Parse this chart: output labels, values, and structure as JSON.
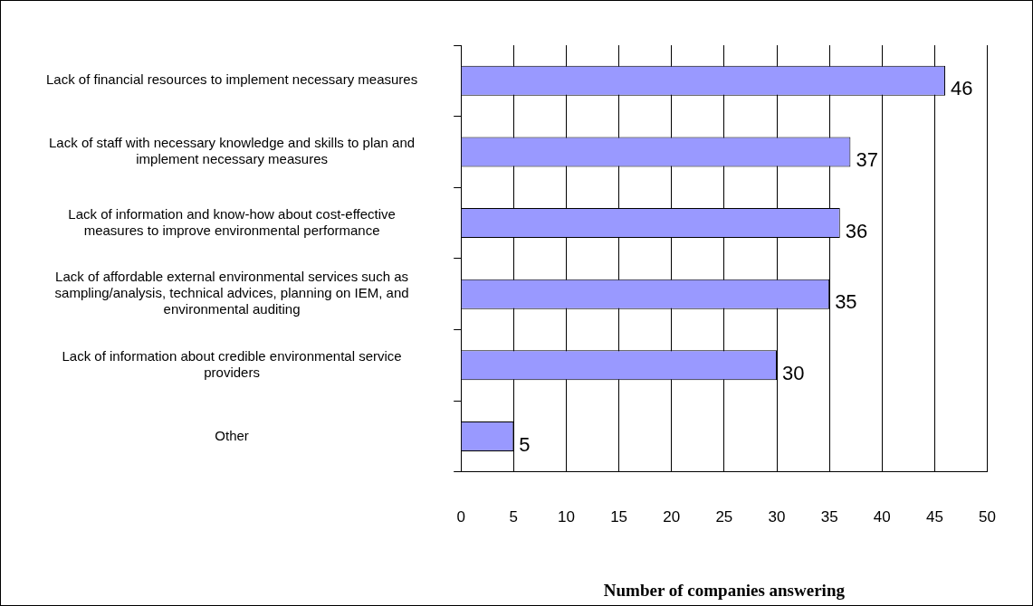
{
  "chart_data": {
    "type": "bar",
    "orientation": "horizontal",
    "xlabel": "Number of companies answering",
    "categories": [
      "Lack of financial resources to implement necessary measures",
      "Lack of staff with necessary knowledge and skills to plan and implement necessary measures",
      "Lack of information and know-how about cost-effective measures to improve environmental performance",
      "Lack of affordable external environmental services such as sampling/analysis, technical advices, planning on IEM, and environmental auditing",
      "Lack of information about credible environmental service providers",
      "Other"
    ],
    "values": [
      46,
      37,
      36,
      35,
      30,
      5
    ],
    "color": "#9999ff",
    "data_labels": true,
    "xlim": [
      0,
      50
    ],
    "xticks": [
      0,
      5,
      10,
      15,
      20,
      25,
      30,
      35,
      40,
      45,
      50
    ],
    "grid": "x",
    "legend": false
  }
}
